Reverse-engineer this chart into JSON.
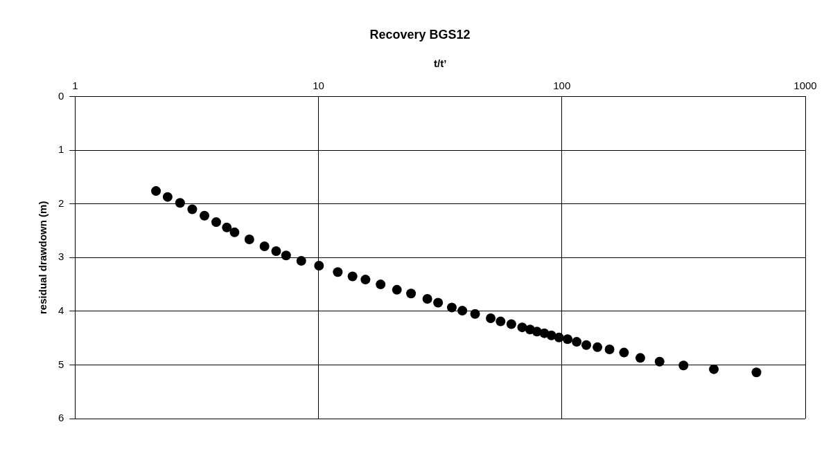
{
  "chart_data": {
    "type": "scatter",
    "title": "Recovery BGS12",
    "xlabel": "t/t’",
    "ylabel": "residual drawdown (m)",
    "log": "x",
    "grid": true,
    "legend": false,
    "marker": "circle",
    "xlim": [
      1,
      1000
    ],
    "xticks": [
      1,
      10,
      100,
      1000
    ],
    "ylim": [
      6,
      0
    ],
    "yticks": [
      0,
      1,
      2,
      3,
      4,
      5,
      6
    ],
    "series": [
      {
        "color": "#000000",
        "x": [
          2.15,
          2.4,
          2.7,
          3.03,
          3.4,
          3.8,
          4.2,
          4.52,
          5.2,
          6.0,
          6.7,
          7.36,
          8.5,
          10.05,
          12,
          13.8,
          15.6,
          18,
          21,
          24,
          28,
          31,
          35.3,
          39,
          44,
          51,
          56,
          62,
          68.7,
          74,
          79,
          84.7,
          90.5,
          97.3,
          105.5,
          115,
          126,
          140,
          157,
          180,
          210,
          252,
          316,
          421,
          630
        ],
        "values": [
          1.76,
          1.87,
          1.98,
          2.1,
          2.22,
          2.34,
          2.44,
          2.53,
          2.66,
          2.79,
          2.88,
          2.96,
          3.06,
          3.15,
          3.27,
          3.35,
          3.41,
          3.5,
          3.6,
          3.67,
          3.77,
          3.84,
          3.93,
          3.99,
          4.05,
          4.13,
          4.19,
          4.24,
          4.3,
          4.34,
          4.38,
          4.41,
          4.45,
          4.49,
          4.52,
          4.57,
          4.63,
          4.67,
          4.71,
          4.77,
          4.87,
          4.94,
          5.01,
          5.08,
          5.14
        ]
      }
    ]
  }
}
